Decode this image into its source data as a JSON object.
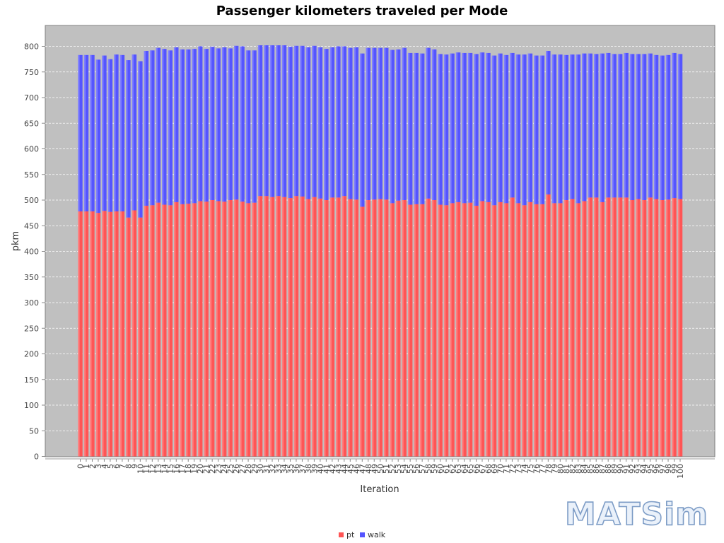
{
  "chart_data": {
    "type": "bar",
    "stacked": true,
    "title": "Passenger kilometers traveled per Mode",
    "xlabel": "Iteration",
    "ylabel": "pkm",
    "ylim": [
      0,
      840
    ],
    "yticks": [
      0,
      50,
      100,
      150,
      200,
      250,
      300,
      350,
      400,
      450,
      500,
      550,
      600,
      650,
      700,
      750,
      800
    ],
    "grid": true,
    "legend_position": "bottom-center",
    "categories": [
      "0",
      "1",
      "2",
      "3",
      "4",
      "5",
      "6",
      "7",
      "8",
      "9",
      "10",
      "11",
      "12",
      "13",
      "14",
      "15",
      "16",
      "17",
      "18",
      "19",
      "20",
      "21",
      "22",
      "23",
      "24",
      "25",
      "26",
      "27",
      "28",
      "29",
      "30",
      "31",
      "32",
      "33",
      "34",
      "35",
      "36",
      "37",
      "38",
      "39",
      "40",
      "41",
      "42",
      "43",
      "44",
      "45",
      "46",
      "47",
      "48",
      "49",
      "50",
      "51",
      "52",
      "53",
      "54",
      "55",
      "56",
      "57",
      "58",
      "59",
      "60",
      "61",
      "62",
      "63",
      "64",
      "65",
      "66",
      "67",
      "68",
      "69",
      "70",
      "71",
      "72",
      "73",
      "74",
      "75",
      "76",
      "77",
      "78",
      "79",
      "80",
      "81",
      "82",
      "83",
      "84",
      "85",
      "86",
      "87",
      "88",
      "89",
      "90",
      "91",
      "92",
      "93",
      "94",
      "95",
      "96",
      "97",
      "98",
      "99",
      "100"
    ],
    "series": [
      {
        "name": "pt",
        "color": "#ff5555",
        "values": [
          478,
          478,
          478,
          475,
          479,
          477,
          478,
          478,
          466,
          480,
          466,
          489,
          490,
          495,
          491,
          490,
          496,
          492,
          493,
          494,
          498,
          497,
          500,
          498,
          497,
          500,
          501,
          497,
          494,
          495,
          508,
          508,
          506,
          508,
          506,
          504,
          508,
          507,
          502,
          506,
          503,
          500,
          505,
          505,
          508,
          502,
          501,
          487,
          500,
          501,
          502,
          501,
          494,
          499,
          500,
          491,
          492,
          492,
          503,
          500,
          491,
          490,
          494,
          496,
          494,
          495,
          489,
          498,
          496,
          490,
          496,
          494,
          505,
          494,
          490,
          496,
          492,
          492,
          511,
          494,
          494,
          500,
          502,
          494,
          498,
          505,
          505,
          496,
          505,
          505,
          505,
          505,
          500,
          502,
          500,
          505,
          502,
          500,
          501,
          504,
          502
        ]
      },
      {
        "name": "walk",
        "color": "#5555ff",
        "values": [
          305,
          305,
          305,
          299,
          303,
          298,
          306,
          305,
          307,
          304,
          305,
          302,
          302,
          302,
          304,
          302,
          302,
          302,
          301,
          301,
          302,
          298,
          299,
          298,
          301,
          296,
          300,
          303,
          298,
          297,
          294,
          294,
          296,
          294,
          296,
          295,
          293,
          294,
          296,
          295,
          295,
          295,
          293,
          295,
          292,
          295,
          297,
          299,
          297,
          296,
          295,
          296,
          299,
          295,
          297,
          296,
          295,
          294,
          294,
          294,
          294,
          294,
          292,
          292,
          293,
          292,
          296,
          290,
          291,
          292,
          290,
          289,
          282,
          290,
          294,
          290,
          290,
          290,
          280,
          290,
          290,
          283,
          282,
          290,
          288,
          281,
          280,
          290,
          282,
          280,
          280,
          282,
          285,
          283,
          285,
          281,
          281,
          282,
          282,
          283,
          283
        ]
      }
    ]
  },
  "legend": [
    {
      "label": "pt",
      "color": "#ff5555"
    },
    {
      "label": "walk",
      "color": "#5555ff"
    }
  ],
  "logo": {
    "text": "MATSim"
  }
}
